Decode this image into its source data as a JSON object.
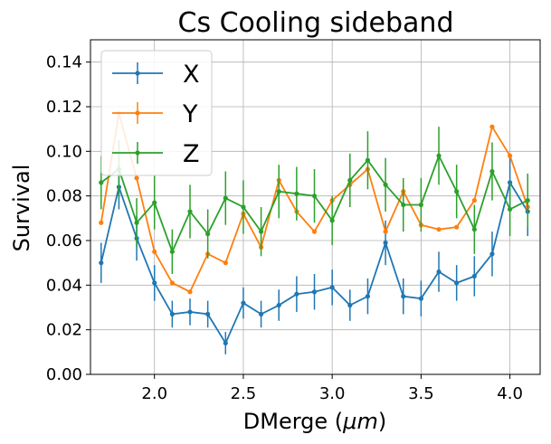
{
  "chart_data": {
    "type": "line",
    "title": "Cs Cooling sideband",
    "xlabel_main": "DMerge (",
    "xlabel_unit": "μm",
    "xlabel_close": ")",
    "ylabel": "Survival",
    "xlim": [
      1.64,
      4.17
    ],
    "ylim": [
      0.0,
      0.15
    ],
    "xticks": [
      2.0,
      2.5,
      3.0,
      3.5,
      4.0
    ],
    "xtick_labels": [
      "2.0",
      "2.5",
      "3.0",
      "3.5",
      "4.0"
    ],
    "yticks": [
      0.0,
      0.02,
      0.04,
      0.06,
      0.08,
      0.1,
      0.12,
      0.14
    ],
    "ytick_labels": [
      "0.00",
      "0.02",
      "0.04",
      "0.06",
      "0.08",
      "0.10",
      "0.12",
      "0.14"
    ],
    "grid": true,
    "legend_position": "upper-left",
    "x": [
      1.7,
      1.8,
      1.9,
      2.0,
      2.1,
      2.2,
      2.3,
      2.4,
      2.5,
      2.6,
      2.7,
      2.8,
      2.9,
      3.0,
      3.1,
      3.2,
      3.3,
      3.4,
      3.5,
      3.6,
      3.7,
      3.8,
      3.9,
      4.0,
      4.1
    ],
    "series": [
      {
        "name": "X",
        "color": "#1f77b4",
        "values": [
          0.05,
          0.084,
          0.061,
          0.041,
          0.027,
          0.028,
          0.027,
          0.014,
          0.032,
          0.027,
          0.031,
          0.036,
          0.037,
          0.039,
          0.031,
          0.035,
          0.059,
          0.035,
          0.034,
          0.046,
          0.041,
          0.044,
          0.054,
          0.086,
          0.073
        ],
        "errors": [
          0.009,
          0.01,
          0.01,
          0.008,
          0.006,
          0.006,
          0.006,
          0.005,
          0.007,
          0.006,
          0.007,
          0.008,
          0.008,
          0.008,
          0.007,
          0.008,
          0.01,
          0.008,
          0.008,
          0.009,
          0.008,
          0.009,
          0.01,
          0.012,
          0.011
        ]
      },
      {
        "name": "Y",
        "color": "#ff7f0e",
        "values": [
          0.068,
          0.117,
          0.088,
          0.055,
          0.041,
          0.037,
          0.054,
          0.05,
          0.072,
          0.057,
          0.087,
          0.073,
          0.064,
          0.078,
          0.085,
          0.092,
          0.064,
          0.082,
          0.067,
          0.065,
          0.066,
          0.078,
          0.111,
          0.098,
          0.075
        ]
      },
      {
        "name": "Z",
        "color": "#2ca02c",
        "values": [
          0.086,
          0.092,
          0.068,
          0.077,
          0.055,
          0.073,
          0.063,
          0.079,
          0.075,
          0.064,
          0.082,
          0.081,
          0.08,
          0.069,
          0.087,
          0.096,
          0.085,
          0.076,
          0.076,
          0.098,
          0.082,
          0.065,
          0.091,
          0.074,
          0.078
        ],
        "errors": [
          0.012,
          0.013,
          0.011,
          0.012,
          0.01,
          0.012,
          0.011,
          0.012,
          0.012,
          0.011,
          0.012,
          0.012,
          0.012,
          0.011,
          0.012,
          0.013,
          0.012,
          0.012,
          0.012,
          0.013,
          0.012,
          0.011,
          0.013,
          0.012,
          0.012
        ]
      }
    ]
  }
}
